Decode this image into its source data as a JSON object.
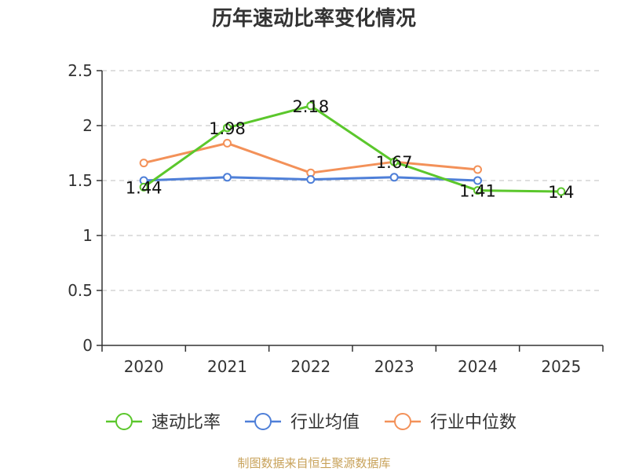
{
  "chart_data": {
    "type": "line",
    "title": "历年速动比率变化情况",
    "categories": [
      "2020",
      "2021",
      "2022",
      "2023",
      "2024",
      "2025"
    ],
    "ylim": [
      0,
      2.5
    ],
    "yticks": [
      "0",
      "0.5",
      "1",
      "1.5",
      "2",
      "2.5"
    ],
    "ytick_values": [
      0,
      0.5,
      1,
      1.5,
      2,
      2.5
    ],
    "grid": true,
    "legend_position": "bottom",
    "series": [
      {
        "name": "速动比率",
        "color": "#5bc72c",
        "values": [
          1.44,
          1.98,
          2.18,
          1.67,
          1.41,
          1.4
        ],
        "labels": [
          "1.44",
          "1.98",
          "2.18",
          "1.67",
          "1.41",
          "1.4"
        ]
      },
      {
        "name": "行业均值",
        "color": "#4e7fd8",
        "values": [
          1.5,
          1.53,
          1.51,
          1.53,
          1.5,
          null
        ]
      },
      {
        "name": "行业中位数",
        "color": "#f39159",
        "values": [
          1.66,
          1.84,
          1.57,
          1.67,
          1.6,
          null
        ]
      }
    ],
    "source": "制图数据来自恒生聚源数据库"
  }
}
